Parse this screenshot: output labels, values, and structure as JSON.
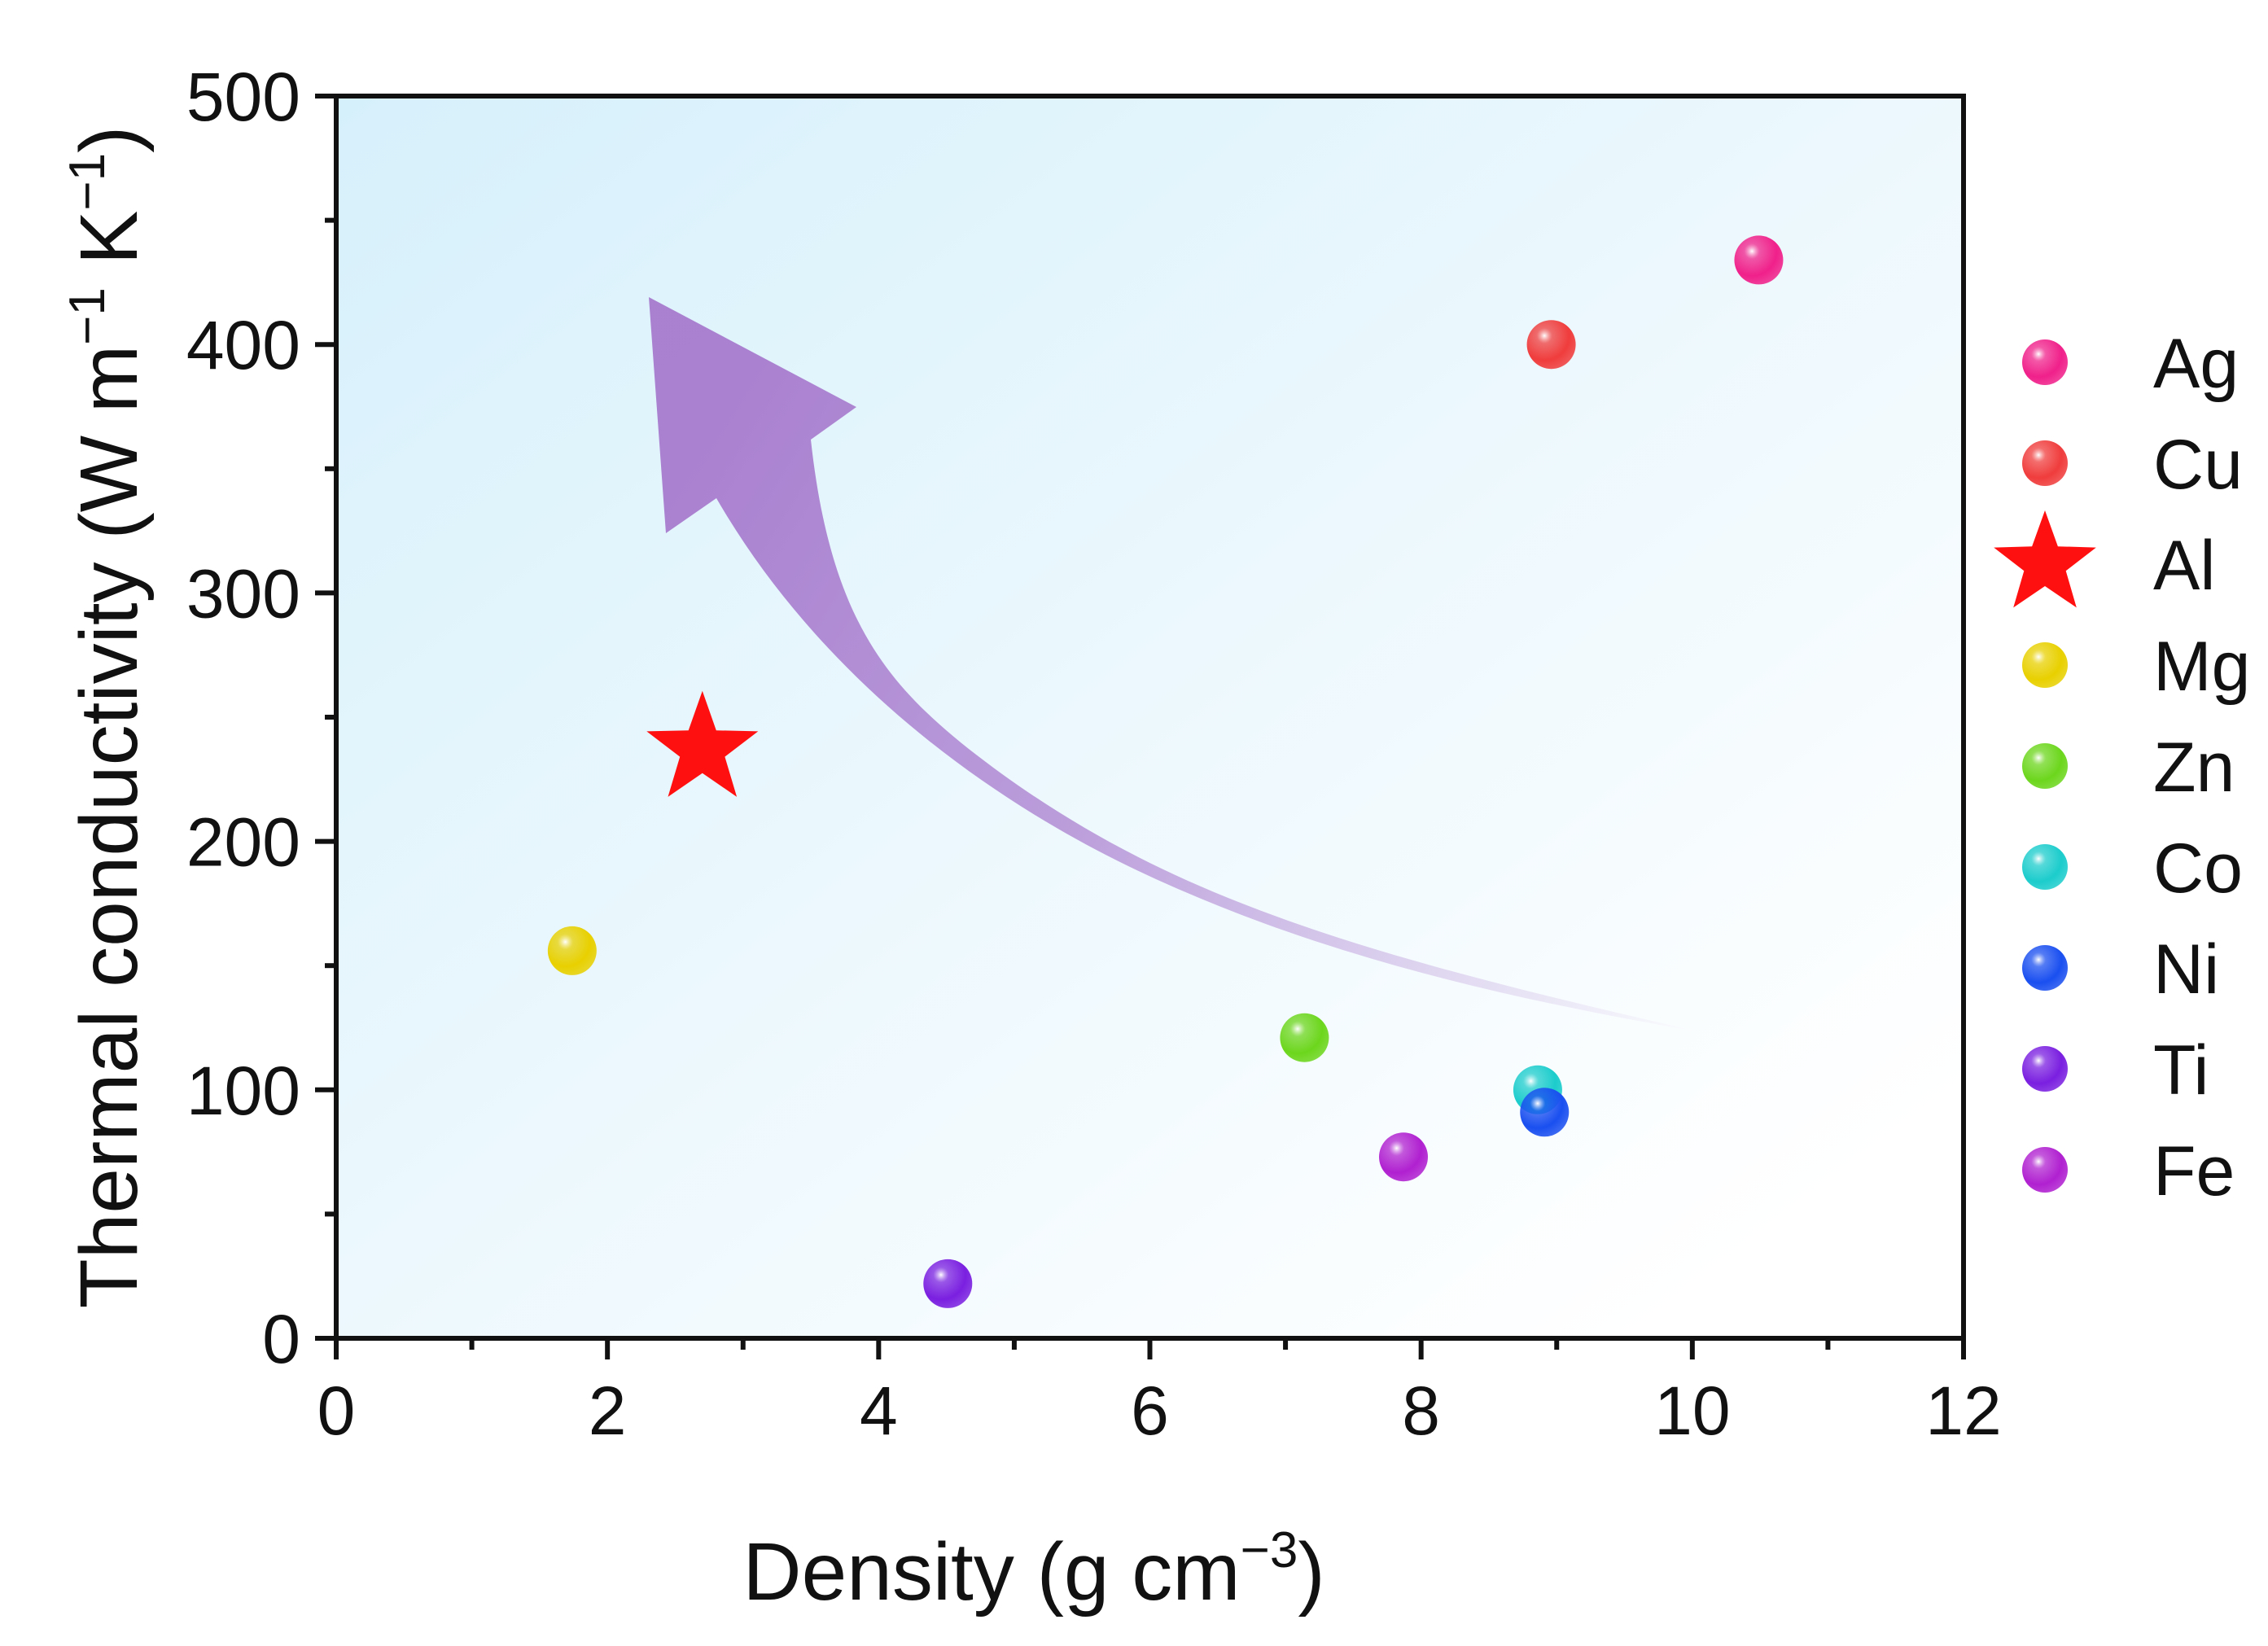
{
  "chart_data": {
    "type": "scatter",
    "xlabel": "Density (g cm",
    "xlabel_sup": "−3",
    "xlabel_end": ")",
    "ylabel": "Thermal conductivity (W m",
    "ylabel_sup1": "−1",
    "ylabel_mid": " K",
    "ylabel_sup2": "−1",
    "ylabel_end": ")",
    "xlim": [
      0,
      12
    ],
    "ylim": [
      0,
      500
    ],
    "x_ticks": [
      "0",
      "2",
      "4",
      "6",
      "8",
      "10",
      "12"
    ],
    "y_ticks": [
      "0",
      "100",
      "200",
      "300",
      "400",
      "500"
    ],
    "grid": false,
    "legend_position": "right",
    "series": [
      {
        "name": "Ag",
        "x": 10.49,
        "y": 434,
        "marker": "sphere",
        "color": "#f0208a"
      },
      {
        "name": "Cu",
        "x": 8.96,
        "y": 400,
        "marker": "sphere",
        "color": "#f03c3c"
      },
      {
        "name": "Al",
        "x": 2.7,
        "y": 237,
        "marker": "star",
        "color": "#ff1010"
      },
      {
        "name": "Mg",
        "x": 1.74,
        "y": 156,
        "marker": "sphere",
        "color": "#e8d000"
      },
      {
        "name": "Zn",
        "x": 7.14,
        "y": 121,
        "marker": "sphere",
        "color": "#6cd61c"
      },
      {
        "name": "Co",
        "x": 8.86,
        "y": 100,
        "marker": "sphere",
        "color": "#1ccccc"
      },
      {
        "name": "Ni",
        "x": 8.91,
        "y": 91,
        "marker": "sphere",
        "color": "#1a4ff0"
      },
      {
        "name": "Ti",
        "x": 4.51,
        "y": 22,
        "marker": "sphere",
        "color": "#7a1fe0"
      },
      {
        "name": "Fe",
        "x": 7.87,
        "y": 73,
        "marker": "sphere",
        "color": "#b020d0"
      }
    ],
    "background_gradient": [
      "#d6f0fb",
      "#ffffff"
    ],
    "arrow_color": "#a06cc8"
  }
}
